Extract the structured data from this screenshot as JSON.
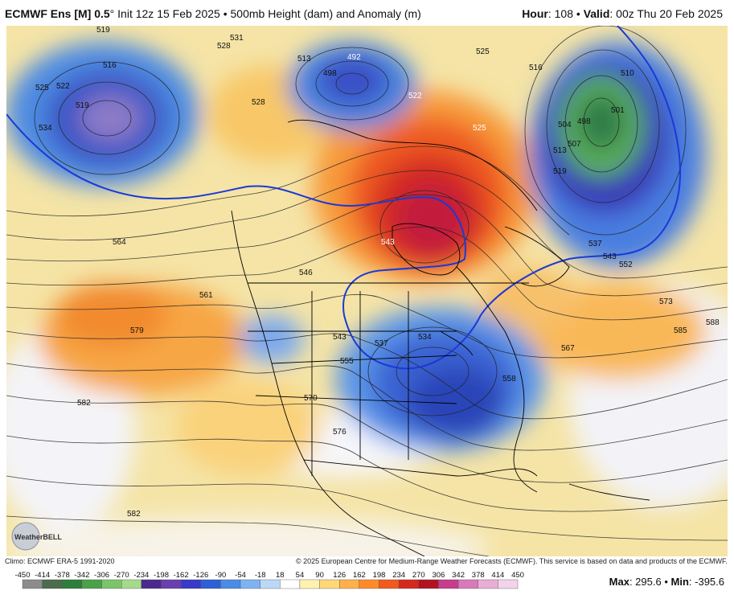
{
  "header": {
    "model": "ECMWF Ens [M] 0.5",
    "degree": "°",
    "init": "Init 12z 15 Feb 2025",
    "bullet": "•",
    "field": "500mb Height (dam) and Anomaly (m)",
    "hour_label": "Hour",
    "hour_value": ": 108",
    "valid_label": "Valid",
    "valid_value": ": 00z Thu 20 Feb 2025"
  },
  "footer": {
    "climo": "Climo: ECMWF ERA-5 1991-2020",
    "copyright": "© 2025 European Centre for Medium-Range Weather Forecasts (ECMWF). This service is based on data and products of the ECMWF."
  },
  "stats": {
    "max_label": "Max",
    "max_value": ": 295.6",
    "sep": "•",
    "min_label": "Min",
    "min_value": ": -395.6"
  },
  "logo": {
    "name": "WeatherBELL"
  },
  "colorbar": {
    "ticks": [
      "-450",
      "-414",
      "-378",
      "-342",
      "-306",
      "-270",
      "-234",
      "-198",
      "-162",
      "-126",
      "-90",
      "-54",
      "-18",
      "18",
      "54",
      "90",
      "126",
      "162",
      "198",
      "234",
      "270",
      "306",
      "342",
      "378",
      "414",
      "450"
    ],
    "colors": [
      "#8c8c8c",
      "#4e6b4e",
      "#2e7d3a",
      "#4aa14a",
      "#7cc46b",
      "#a6d98c",
      "#4a2a8c",
      "#6a3fb0",
      "#3a3ac8",
      "#2d5fd6",
      "#4a8be6",
      "#7fb2f0",
      "#bcd8f8",
      "#ffffff",
      "#fff2b0",
      "#ffd878",
      "#ffb04a",
      "#ff8a2a",
      "#f05a1e",
      "#d42a1e",
      "#b01420",
      "#c83c8c",
      "#d97ab8",
      "#e8aed6",
      "#f3d3ea"
    ]
  },
  "contours": {
    "labels": [
      "519",
      "531",
      "528",
      "525",
      "522",
      "519",
      "534",
      "516",
      "513",
      "498",
      "492",
      "525",
      "528",
      "522",
      "525",
      "510",
      "501",
      "498",
      "504",
      "507",
      "513",
      "516",
      "519",
      "537",
      "543",
      "552",
      "543",
      "564",
      "561",
      "546",
      "579",
      "543",
      "537",
      "534",
      "555",
      "570",
      "573",
      "585",
      "588",
      "567",
      "558",
      "582",
      "576",
      "582"
    ]
  }
}
